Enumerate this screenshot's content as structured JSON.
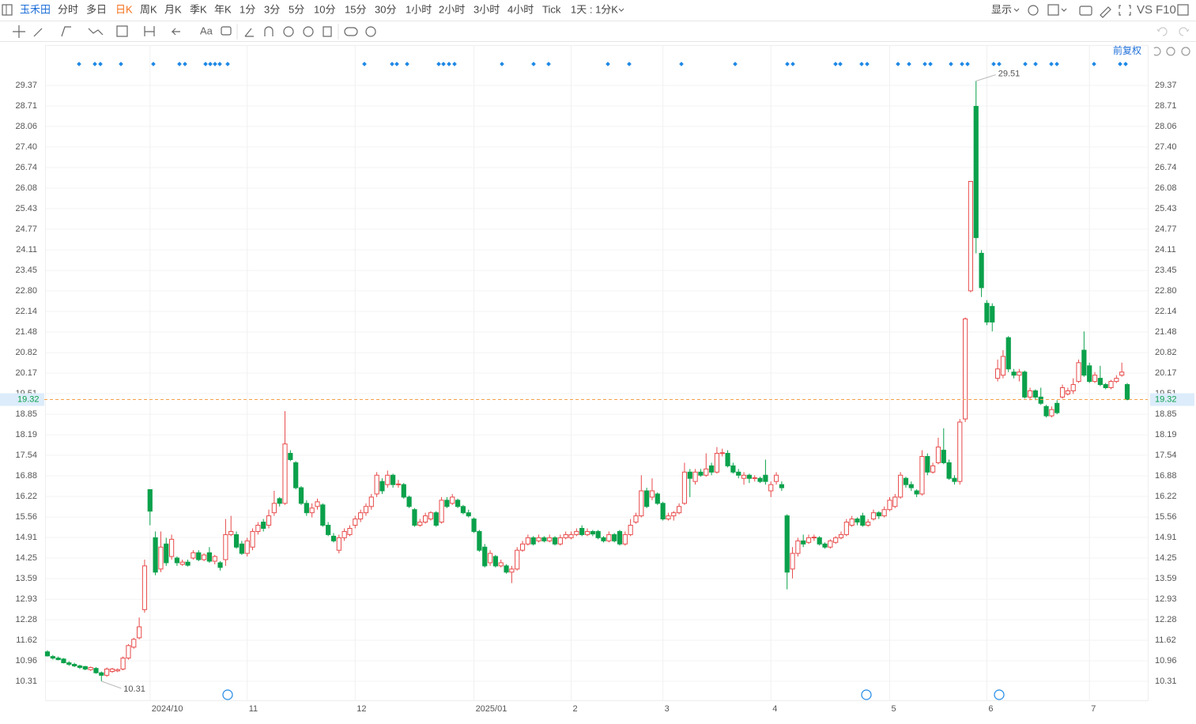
{
  "toolbar": {
    "symbol": "玉禾田",
    "periods": [
      "分时",
      "多日",
      "日K",
      "周K",
      "月K",
      "季K",
      "年K",
      "1分",
      "3分",
      "5分",
      "10分",
      "15分",
      "30分",
      "1小时",
      "2小时",
      "3小时",
      "4小时",
      "Tick"
    ],
    "selected": "日K",
    "interval": "1天 : 1分K",
    "display": "显示",
    "compare": "VS",
    "f10": "F10",
    "font_tool": "Aa"
  },
  "chart_data": {
    "type": "candlestick",
    "categories": [
      null,
      null,
      null,
      null,
      null,
      null,
      null,
      null,
      null,
      null,
      null,
      null,
      null,
      null,
      null,
      null,
      null,
      null,
      null,
      "2024/10",
      null,
      null,
      null,
      null,
      null,
      null,
      null,
      null,
      null,
      null,
      null,
      null,
      null,
      null,
      null,
      null,
      null,
      "11",
      null,
      null,
      null,
      null,
      null,
      null,
      null,
      null,
      null,
      null,
      null,
      null,
      null,
      null,
      null,
      null,
      null,
      null,
      null,
      "12",
      null,
      null,
      null,
      null,
      null,
      null,
      null,
      null,
      null,
      null,
      null,
      null,
      null,
      null,
      null,
      null,
      null,
      null,
      null,
      null,
      null,
      "2025/01",
      null,
      null,
      null,
      null,
      null,
      null,
      null,
      null,
      null,
      null,
      null,
      null,
      null,
      null,
      null,
      null,
      null,
      "2",
      null,
      null,
      null,
      null,
      null,
      null,
      null,
      null,
      null,
      null,
      null,
      null,
      null,
      null,
      null,
      null,
      "3",
      null,
      null,
      null,
      null,
      null,
      null,
      null,
      null,
      null,
      null,
      null,
      null,
      null,
      null,
      null,
      null,
      null,
      null,
      null,
      "4",
      null,
      null,
      null,
      null,
      null,
      null,
      null,
      null,
      null,
      null,
      null,
      null,
      null,
      null,
      null,
      null,
      null,
      null,
      null,
      null,
      null,
      "5",
      null,
      null,
      null,
      null,
      null,
      null,
      null,
      null,
      null,
      null,
      null,
      null,
      null,
      null,
      null,
      null,
      null,
      "6",
      null,
      null,
      null,
      null,
      null,
      null,
      null,
      null,
      null,
      null,
      null,
      null,
      null,
      null,
      null,
      null,
      null,
      null,
      "7",
      null,
      null,
      null,
      null,
      null,
      null,
      null
    ],
    "ohlc": [
      [
        11.25,
        11.3,
        11.1,
        11.12
      ],
      [
        11.1,
        11.15,
        11.0,
        11.05
      ],
      [
        11.05,
        11.1,
        10.98,
        11.0
      ],
      [
        11.02,
        11.05,
        10.88,
        10.9
      ],
      [
        10.9,
        10.95,
        10.8,
        10.85
      ],
      [
        10.85,
        10.9,
        10.76,
        10.8
      ],
      [
        10.8,
        10.84,
        10.7,
        10.75
      ],
      [
        10.78,
        10.8,
        10.66,
        10.7
      ],
      [
        10.68,
        10.78,
        10.64,
        10.75
      ],
      [
        10.72,
        10.76,
        10.55,
        10.58
      ],
      [
        10.58,
        10.62,
        10.31,
        10.5
      ],
      [
        10.5,
        10.75,
        10.45,
        10.7
      ],
      [
        10.62,
        10.74,
        10.58,
        10.7
      ],
      [
        10.64,
        10.72,
        10.6,
        10.68
      ],
      [
        10.7,
        11.1,
        10.66,
        11.05
      ],
      [
        11.05,
        11.5,
        11.0,
        11.45
      ],
      [
        11.4,
        11.7,
        11.35,
        11.65
      ],
      [
        11.7,
        12.35,
        11.65,
        12.05
      ],
      [
        12.6,
        14.2,
        12.5,
        14.0
      ],
      [
        16.44,
        16.44,
        15.3,
        15.75
      ],
      [
        14.9,
        15.1,
        13.7,
        13.8
      ],
      [
        13.9,
        15.1,
        13.8,
        14.6
      ],
      [
        14.7,
        14.9,
        14.0,
        14.1
      ],
      [
        14.3,
        15.0,
        14.2,
        14.85
      ],
      [
        14.25,
        14.3,
        14.0,
        14.1
      ],
      [
        14.05,
        14.2,
        14.0,
        14.12
      ],
      [
        14.12,
        14.2,
        13.98,
        14.02
      ],
      [
        14.25,
        14.5,
        14.2,
        14.42
      ],
      [
        14.42,
        14.5,
        14.15,
        14.2
      ],
      [
        14.2,
        14.4,
        14.15,
        14.35
      ],
      [
        14.42,
        14.6,
        14.1,
        14.15
      ],
      [
        14.15,
        14.35,
        14.05,
        14.3
      ],
      [
        14.1,
        14.15,
        13.85,
        13.95
      ],
      [
        14.2,
        15.5,
        14.0,
        15.0
      ],
      [
        15.0,
        15.6,
        14.95,
        15.1
      ],
      [
        15.0,
        15.1,
        14.55,
        14.6
      ],
      [
        14.7,
        14.8,
        14.35,
        14.4
      ],
      [
        14.4,
        14.9,
        14.3,
        14.8
      ],
      [
        14.6,
        15.2,
        14.5,
        15.1
      ],
      [
        15.1,
        15.4,
        15.0,
        15.3
      ],
      [
        15.4,
        15.5,
        15.1,
        15.2
      ],
      [
        15.3,
        15.8,
        15.2,
        15.6
      ],
      [
        15.7,
        16.4,
        15.6,
        16.0
      ],
      [
        16.15,
        16.2,
        15.9,
        16.0
      ],
      [
        16.0,
        18.95,
        15.95,
        17.9
      ],
      [
        17.6,
        17.7,
        17.35,
        17.4
      ],
      [
        17.3,
        17.35,
        16.45,
        16.5
      ],
      [
        16.5,
        16.55,
        15.95,
        16.0
      ],
      [
        16.0,
        16.1,
        15.6,
        15.7
      ],
      [
        15.7,
        16.0,
        15.55,
        15.85
      ],
      [
        15.9,
        16.15,
        15.8,
        16.05
      ],
      [
        15.95,
        16.0,
        15.25,
        15.3
      ],
      [
        15.3,
        15.4,
        14.95,
        15.0
      ],
      [
        14.95,
        15.05,
        14.75,
        14.8
      ],
      [
        14.5,
        15.0,
        14.4,
        14.9
      ],
      [
        14.9,
        15.2,
        14.8,
        15.1
      ],
      [
        15.0,
        15.3,
        14.95,
        15.2
      ],
      [
        15.3,
        15.6,
        15.2,
        15.5
      ],
      [
        15.5,
        15.8,
        15.4,
        15.7
      ],
      [
        15.7,
        16.0,
        15.6,
        15.9
      ],
      [
        15.9,
        16.3,
        15.8,
        16.2
      ],
      [
        16.3,
        17.0,
        16.2,
        16.9
      ],
      [
        16.7,
        16.8,
        16.3,
        16.4
      ],
      [
        16.6,
        17.05,
        16.5,
        16.9
      ],
      [
        16.9,
        16.95,
        16.5,
        16.6
      ],
      [
        16.6,
        16.75,
        16.5,
        16.62
      ],
      [
        16.6,
        16.65,
        16.15,
        16.2
      ],
      [
        16.2,
        16.25,
        15.85,
        15.9
      ],
      [
        15.8,
        15.85,
        15.25,
        15.3
      ],
      [
        15.3,
        15.5,
        15.25,
        15.4
      ],
      [
        15.4,
        15.7,
        15.35,
        15.6
      ],
      [
        15.5,
        15.75,
        15.45,
        15.7
      ],
      [
        15.7,
        15.75,
        15.25,
        15.3
      ],
      [
        15.4,
        16.2,
        15.35,
        16.1
      ],
      [
        16.1,
        16.2,
        15.85,
        15.9
      ],
      [
        16.0,
        16.3,
        15.95,
        16.2
      ],
      [
        16.1,
        16.15,
        15.85,
        15.9
      ],
      [
        15.9,
        15.95,
        15.65,
        15.7
      ],
      [
        15.7,
        15.8,
        15.55,
        15.6
      ],
      [
        15.5,
        15.55,
        15.05,
        15.1
      ],
      [
        15.1,
        15.15,
        14.45,
        14.5
      ],
      [
        14.6,
        14.7,
        13.95,
        14.0
      ],
      [
        14.1,
        14.5,
        14.0,
        14.4
      ],
      [
        14.3,
        14.35,
        13.95,
        14.0
      ],
      [
        14.0,
        14.2,
        13.95,
        14.1
      ],
      [
        14.0,
        14.05,
        13.75,
        13.8
      ],
      [
        13.8,
        14.0,
        13.45,
        13.9
      ],
      [
        13.9,
        14.6,
        13.85,
        14.5
      ],
      [
        14.5,
        14.8,
        14.45,
        14.7
      ],
      [
        14.7,
        15.0,
        14.65,
        14.9
      ],
      [
        14.9,
        14.95,
        14.65,
        14.7
      ],
      [
        14.8,
        15.0,
        14.75,
        14.9
      ],
      [
        14.9,
        14.95,
        14.75,
        14.8
      ],
      [
        14.8,
        15.0,
        14.75,
        14.9
      ],
      [
        14.9,
        14.95,
        14.65,
        14.7
      ],
      [
        14.7,
        15.0,
        14.65,
        14.9
      ],
      [
        14.9,
        15.1,
        14.85,
        15.0
      ],
      [
        14.9,
        15.1,
        14.85,
        15.0
      ],
      [
        15.0,
        15.2,
        14.95,
        15.1
      ],
      [
        15.2,
        15.3,
        14.95,
        15.0
      ],
      [
        15.0,
        15.2,
        14.95,
        15.1
      ],
      [
        15.1,
        15.15,
        14.95,
        15.02
      ],
      [
        15.1,
        15.15,
        14.85,
        14.9
      ],
      [
        14.9,
        14.95,
        14.75,
        14.8
      ],
      [
        14.8,
        15.1,
        14.75,
        15.0
      ],
      [
        15.0,
        15.05,
        14.75,
        14.8
      ],
      [
        15.1,
        15.15,
        14.65,
        14.7
      ],
      [
        14.7,
        15.1,
        14.65,
        15.0
      ],
      [
        15.0,
        15.5,
        14.95,
        15.3
      ],
      [
        15.4,
        15.7,
        15.35,
        15.6
      ],
      [
        15.6,
        16.9,
        15.55,
        16.4
      ],
      [
        16.4,
        16.5,
        15.85,
        15.9
      ],
      [
        16.2,
        16.8,
        16.1,
        16.4
      ],
      [
        16.3,
        16.35,
        15.95,
        16.0
      ],
      [
        16.0,
        16.05,
        15.45,
        15.5
      ],
      [
        15.5,
        15.7,
        15.45,
        15.6
      ],
      [
        15.6,
        15.75,
        15.45,
        15.7
      ],
      [
        15.7,
        16.0,
        15.65,
        15.9
      ],
      [
        16.0,
        17.3,
        15.95,
        17.0
      ],
      [
        17.0,
        17.1,
        16.2,
        16.8
      ],
      [
        16.7,
        17.1,
        16.6,
        17.0
      ],
      [
        17.0,
        17.1,
        16.85,
        16.9
      ],
      [
        16.9,
        17.6,
        16.85,
        17.1
      ],
      [
        17.2,
        17.3,
        16.9,
        17.0
      ],
      [
        17.0,
        17.8,
        16.95,
        17.6
      ],
      [
        17.6,
        17.75,
        17.5,
        17.62
      ],
      [
        17.6,
        17.7,
        17.15,
        17.2
      ],
      [
        17.2,
        17.3,
        16.95,
        17.0
      ],
      [
        17.0,
        17.1,
        16.8,
        16.9
      ],
      [
        16.8,
        17.0,
        16.6,
        16.9
      ],
      [
        16.9,
        16.95,
        16.65,
        16.8
      ],
      [
        16.8,
        16.9,
        16.7,
        16.82
      ],
      [
        16.8,
        16.85,
        16.65,
        16.7
      ],
      [
        16.9,
        17.4,
        16.6,
        16.7
      ],
      [
        16.4,
        16.7,
        16.2,
        16.6
      ],
      [
        16.7,
        17.0,
        16.6,
        16.9
      ],
      [
        16.6,
        16.7,
        16.4,
        16.5
      ],
      [
        15.6,
        15.65,
        13.25,
        13.8
      ],
      [
        13.9,
        14.6,
        13.6,
        14.4
      ],
      [
        14.4,
        14.9,
        14.3,
        14.8
      ],
      [
        14.8,
        15.0,
        14.6,
        14.7
      ],
      [
        14.75,
        15.0,
        14.7,
        14.9
      ],
      [
        14.9,
        15.0,
        14.8,
        14.92
      ],
      [
        14.9,
        14.95,
        14.65,
        14.7
      ],
      [
        14.7,
        14.75,
        14.55,
        14.6
      ],
      [
        14.6,
        14.85,
        14.55,
        14.8
      ],
      [
        14.75,
        14.95,
        14.7,
        14.9
      ],
      [
        14.9,
        15.1,
        14.85,
        15.0
      ],
      [
        15.0,
        15.5,
        14.95,
        15.4
      ],
      [
        15.3,
        15.6,
        15.25,
        15.5
      ],
      [
        15.5,
        15.55,
        15.3,
        15.4
      ],
      [
        15.6,
        15.7,
        15.25,
        15.3
      ],
      [
        15.3,
        15.5,
        15.25,
        15.4
      ],
      [
        15.5,
        15.8,
        15.45,
        15.7
      ],
      [
        15.7,
        15.75,
        15.5,
        15.6
      ],
      [
        15.6,
        15.9,
        15.55,
        15.8
      ],
      [
        15.8,
        16.2,
        15.75,
        16.1
      ],
      [
        15.9,
        16.3,
        15.85,
        16.2
      ],
      [
        16.2,
        17.0,
        16.15,
        16.9
      ],
      [
        16.8,
        16.85,
        16.5,
        16.6
      ],
      [
        16.6,
        16.7,
        16.4,
        16.5
      ],
      [
        16.4,
        16.45,
        16.2,
        16.3
      ],
      [
        16.3,
        17.7,
        16.25,
        17.5
      ],
      [
        17.5,
        17.6,
        16.9,
        17.0
      ],
      [
        17.0,
        17.3,
        16.95,
        17.2
      ],
      [
        17.3,
        18.1,
        17.25,
        17.8
      ],
      [
        17.7,
        18.4,
        17.25,
        17.3
      ],
      [
        17.3,
        17.4,
        16.75,
        16.8
      ],
      [
        16.8,
        16.9,
        16.6,
        16.7
      ],
      [
        16.7,
        18.7,
        16.6,
        18.6
      ],
      [
        18.7,
        21.95,
        18.6,
        21.9
      ],
      [
        22.8,
        26.3,
        22.75,
        26.3
      ],
      [
        28.7,
        29.51,
        24.0,
        24.5
      ],
      [
        24.0,
        24.1,
        22.6,
        22.9
      ],
      [
        22.4,
        22.5,
        21.7,
        21.8
      ],
      [
        22.3,
        22.4,
        21.5,
        21.8
      ],
      [
        20.0,
        20.6,
        19.9,
        20.3
      ],
      [
        20.1,
        20.9,
        20.0,
        20.7
      ],
      [
        21.3,
        21.35,
        20.2,
        20.3
      ],
      [
        20.2,
        20.3,
        20.0,
        20.1
      ],
      [
        20.1,
        20.3,
        19.9,
        20.2
      ],
      [
        20.2,
        20.25,
        19.35,
        19.4
      ],
      [
        19.4,
        19.7,
        19.3,
        19.6
      ],
      [
        19.6,
        19.65,
        19.3,
        19.4
      ],
      [
        19.4,
        19.7,
        19.15,
        19.2
      ],
      [
        19.1,
        19.15,
        18.75,
        18.8
      ],
      [
        18.8,
        19.1,
        18.75,
        19.0
      ],
      [
        19.2,
        19.3,
        18.85,
        18.9
      ],
      [
        19.4,
        19.8,
        19.35,
        19.7
      ],
      [
        19.5,
        19.7,
        19.45,
        19.6
      ],
      [
        19.6,
        20.0,
        19.5,
        19.8
      ],
      [
        19.9,
        20.6,
        19.85,
        20.5
      ],
      [
        20.9,
        21.5,
        20.05,
        20.1
      ],
      [
        20.4,
        20.5,
        19.85,
        19.9
      ],
      [
        19.9,
        20.2,
        19.85,
        20.1
      ],
      [
        20.0,
        20.4,
        19.75,
        19.8
      ],
      [
        19.8,
        19.85,
        19.65,
        19.7
      ],
      [
        19.7,
        19.95,
        19.65,
        19.9
      ],
      [
        19.9,
        20.1,
        19.85,
        20.0
      ],
      [
        20.1,
        20.5,
        20.05,
        20.2
      ],
      [
        19.8,
        19.85,
        19.3,
        19.32
      ]
    ],
    "up_color": "#e84a4a",
    "down_color": "#0aa14b",
    "ylim": [
      9.7,
      30.13
    ],
    "yticks": [
      10.31,
      10.96,
      11.62,
      12.28,
      12.93,
      13.59,
      14.25,
      14.91,
      15.56,
      16.22,
      16.88,
      17.54,
      18.19,
      18.85,
      19.51,
      20.17,
      20.82,
      21.48,
      22.14,
      {
        "value": 22.8,
        "label": "22.80"
      },
      23.45,
      24.11,
      24.77,
      25.43,
      26.08,
      26.74,
      {
        "value": 27.4,
        "label": "27.40"
      },
      28.06,
      28.71,
      29.37
    ],
    "grid": true,
    "last_price": 19.32,
    "adjustment": "前复权",
    "extremes": {
      "max": 29.51,
      "min": 10.31
    }
  }
}
